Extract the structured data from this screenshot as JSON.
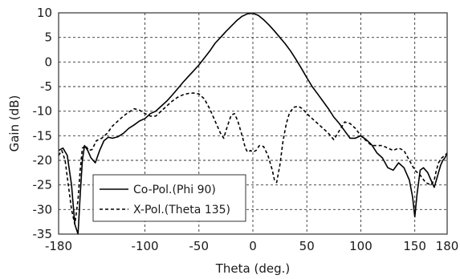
{
  "chart_data": {
    "type": "line",
    "xlabel": "Theta (deg.)",
    "ylabel": "Gain (dB)",
    "xlim": [
      -180,
      180
    ],
    "ylim": [
      -35,
      10
    ],
    "x_ticks": [
      -180,
      -100,
      -50,
      0,
      50,
      100,
      150,
      180
    ],
    "y_ticks": [
      10,
      5,
      0,
      -5,
      -10,
      -15,
      -20,
      -25,
      -30,
      -35
    ],
    "x_tick_labels": [
      "-180",
      "-100",
      "-50",
      "0",
      "50",
      "100",
      "150",
      "180"
    ],
    "y_tick_labels": [
      "10",
      "5",
      "0",
      "-5",
      "-10",
      "-15",
      "-20",
      "-25",
      "-30",
      "-35"
    ],
    "grid": true,
    "legend_position": "lower-left",
    "series": [
      {
        "name": "Co-Pol.(Phi 90)",
        "style": "solid",
        "color": "#000000",
        "x": [
          -180,
          -176,
          -172,
          -168,
          -165,
          -162,
          -160,
          -158,
          -156,
          -153,
          -150,
          -146,
          -142,
          -138,
          -134,
          -130,
          -125,
          -120,
          -115,
          -110,
          -105,
          -100,
          -95,
          -90,
          -85,
          -80,
          -75,
          -70,
          -65,
          -60,
          -55,
          -50,
          -45,
          -40,
          -35,
          -30,
          -25,
          -20,
          -15,
          -10,
          -5,
          0,
          5,
          10,
          15,
          20,
          25,
          30,
          35,
          40,
          45,
          50,
          55,
          60,
          65,
          70,
          75,
          80,
          85,
          90,
          95,
          100,
          105,
          110,
          115,
          120,
          125,
          130,
          135,
          140,
          145,
          148,
          150,
          152,
          155,
          158,
          162,
          165,
          168,
          170,
          172,
          174,
          176,
          178,
          180
        ],
        "y": [
          -18,
          -17.5,
          -19,
          -25,
          -33,
          -35,
          -27,
          -20,
          -17,
          -18,
          -19.5,
          -20.5,
          -18,
          -16,
          -15.3,
          -15.5,
          -15.2,
          -14.5,
          -13.5,
          -12.8,
          -12,
          -11.5,
          -10.5,
          -10,
          -9,
          -8,
          -6.8,
          -5.5,
          -4.2,
          -3,
          -1.8,
          -0.6,
          0.8,
          2.2,
          3.8,
          5,
          6.2,
          7.3,
          8.4,
          9.3,
          9.8,
          9.9,
          9.5,
          8.6,
          7.5,
          6.3,
          5,
          3.7,
          2.2,
          0.5,
          -1.3,
          -3.2,
          -5,
          -6.5,
          -8,
          -9.5,
          -11.2,
          -12.5,
          -14,
          -15.5,
          -15.5,
          -15,
          -15.8,
          -16.8,
          -18.5,
          -19.5,
          -21.5,
          -22,
          -20.5,
          -21.5,
          -24,
          -27.5,
          -31.5,
          -27,
          -22,
          -21.5,
          -22.5,
          -24,
          -25.5,
          -24,
          -22.5,
          -21,
          -20,
          -19.5,
          -18.5
        ]
      },
      {
        "name": "X-Pol.(Theta 135)",
        "style": "dashed",
        "color": "#000000",
        "x": [
          -180,
          -177,
          -174,
          -171,
          -168,
          -165,
          -162,
          -160,
          -158,
          -155,
          -152,
          -149,
          -145,
          -140,
          -135,
          -130,
          -125,
          -120,
          -115,
          -110,
          -105,
          -100,
          -95,
          -90,
          -85,
          -80,
          -75,
          -70,
          -65,
          -60,
          -55,
          -50,
          -45,
          -40,
          -35,
          -30,
          -27,
          -25,
          -22,
          -20,
          -17,
          -14,
          -10,
          -7,
          -5,
          -2,
          0,
          3,
          6,
          10,
          14,
          18,
          20,
          22,
          25,
          28,
          31,
          34,
          38,
          42,
          46,
          50,
          55,
          60,
          65,
          70,
          75,
          80,
          85,
          90,
          95,
          100,
          105,
          110,
          115,
          120,
          125,
          130,
          135,
          140,
          145,
          150,
          155,
          160,
          165,
          168,
          170,
          172,
          175,
          178,
          180
        ],
        "y": [
          -19,
          -18,
          -20,
          -25,
          -30,
          -33,
          -28,
          -22,
          -17.5,
          -17,
          -18,
          -17.8,
          -16,
          -15.5,
          -14.5,
          -13,
          -12,
          -11,
          -10.2,
          -9.5,
          -9.8,
          -10.5,
          -11,
          -11,
          -10,
          -9,
          -8,
          -7.2,
          -6.7,
          -6.4,
          -6.3,
          -6.5,
          -7.5,
          -9.5,
          -12,
          -14.5,
          -15.5,
          -14,
          -12,
          -10.8,
          -10.5,
          -12,
          -15,
          -17.5,
          -18.3,
          -18,
          -18.3,
          -18,
          -17,
          -17.2,
          -19,
          -22,
          -24,
          -24.5,
          -21,
          -16,
          -12.5,
          -10.3,
          -9.2,
          -9,
          -9.5,
          -10.5,
          -11.5,
          -12.5,
          -13.5,
          -14.5,
          -15.8,
          -14,
          -12.2,
          -12.5,
          -13.5,
          -15,
          -16,
          -17,
          -17,
          -17,
          -17.5,
          -18,
          -17.5,
          -18,
          -20,
          -22,
          -23,
          -24.5,
          -25,
          -24,
          -22,
          -20.5,
          -19.5,
          -19,
          -18.5
        ]
      }
    ]
  }
}
